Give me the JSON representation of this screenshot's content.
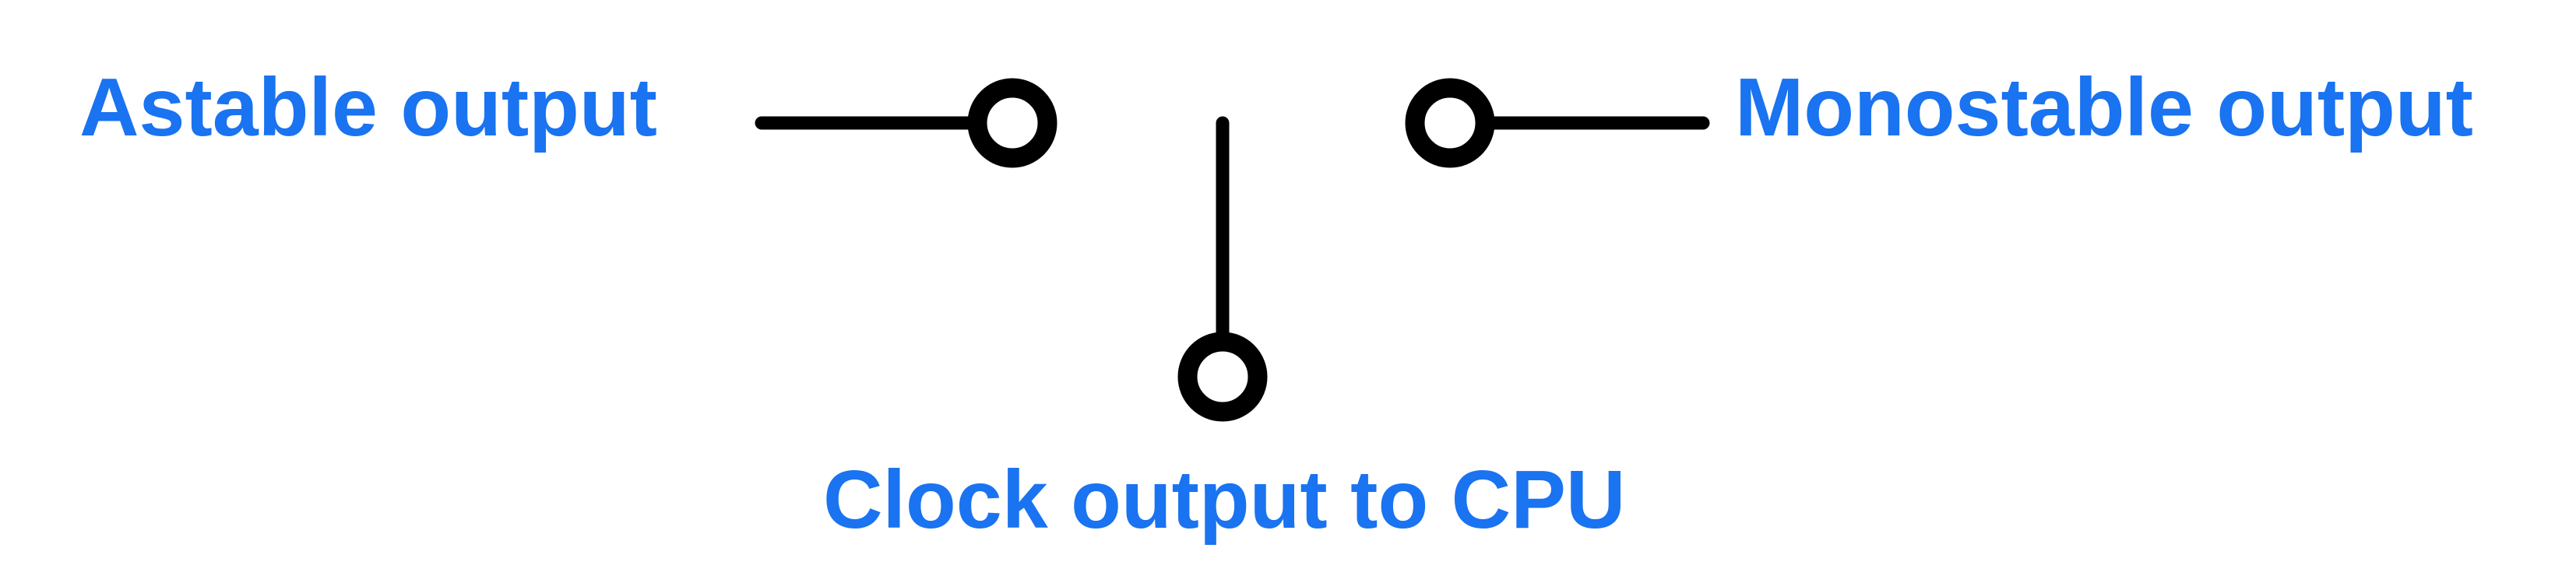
{
  "labels": {
    "astable": "Astable output",
    "monostable": "Monostable output",
    "clock": "Clock output to CPU"
  },
  "colors": {
    "label": "#1a73f0",
    "wire": "#000000",
    "terminal_fill": "#ffffff"
  }
}
